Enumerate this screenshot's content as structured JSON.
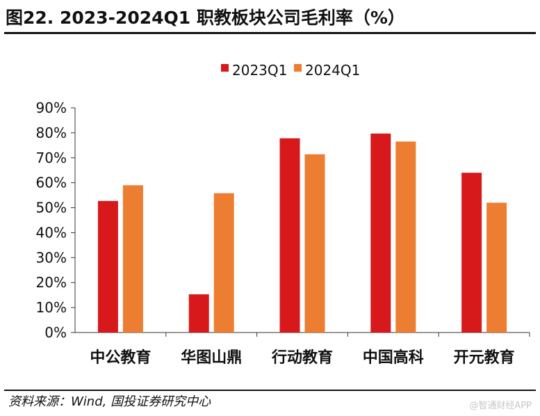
{
  "header": {
    "title": "图22. 2023-2024Q1 职教板块公司毛利率（%）"
  },
  "footer": {
    "source": "资料来源：Wind, 国投证券研究中心",
    "watermark": "@智通财经APP"
  },
  "chart_data": {
    "type": "bar",
    "title": "2023-2024Q1 职教板块公司毛利率（%）",
    "xlabel": "",
    "ylabel": "",
    "categories": [
      "中公教育",
      "华图山鼎",
      "行动教育",
      "中国高科",
      "开元教育"
    ],
    "series": [
      {
        "name": "2023Q1",
        "color": "#d7191c",
        "values": [
          52.7,
          15.3,
          77.8,
          79.7,
          64.0
        ]
      },
      {
        "name": "2024Q1",
        "color": "#ed7d31",
        "values": [
          59.0,
          55.8,
          71.4,
          76.5,
          52.0
        ]
      }
    ],
    "ylim": [
      0,
      90
    ],
    "yticks": [
      0,
      10,
      20,
      30,
      40,
      50,
      60,
      70,
      80,
      90
    ],
    "ytick_labels": [
      "0%",
      "10%",
      "20%",
      "30%",
      "40%",
      "50%",
      "60%",
      "70%",
      "80%",
      "90%"
    ],
    "legend_position": "top-center",
    "grid": false
  }
}
